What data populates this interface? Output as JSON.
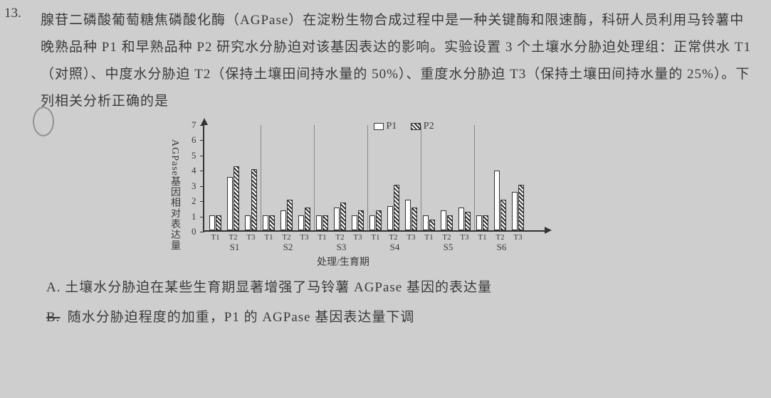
{
  "question_number": "13.",
  "paragraph": "腺苷二磷酸葡萄糖焦磷酸化酶（AGPase）在淀粉生物合成过程中是一种关键酶和限速酶，科研人员利用马铃薯中晚熟品种 P1 和早熟品种 P2 研究水分胁迫对该基因表达的影响。实验设置 3 个土壤水分胁迫处理组：正常供水 T1（对照）、中度水分胁迫 T2（保持土壤田间持水量的 50%）、重度水分胁迫 T3（保持土壤田间持水量的 25%）。下列相关分析正确的是",
  "chart": {
    "y_label": "AGPase基因相对表达量",
    "x_label": "处理/生育期",
    "y_max": 7,
    "y_ticks": [
      0,
      1,
      2,
      3,
      4,
      5,
      6,
      7
    ],
    "legend": {
      "p1": "P1",
      "p2": "P2"
    },
    "treatments": [
      "T1",
      "T2",
      "T3"
    ],
    "stages": [
      "S1",
      "S2",
      "S3",
      "S4",
      "S5",
      "S6"
    ],
    "data_p1": {
      "S1": [
        1.0,
        3.5,
        1.0
      ],
      "S2": [
        1.0,
        1.3,
        1.0
      ],
      "S3": [
        1.0,
        1.5,
        1.0
      ],
      "S4": [
        1.0,
        1.6,
        2.0
      ],
      "S5": [
        1.0,
        1.3,
        1.5
      ],
      "S6": [
        1.0,
        3.9,
        2.5
      ]
    },
    "data_p2": {
      "S1": [
        1.0,
        4.2,
        4.0
      ],
      "S2": [
        1.0,
        2.0,
        1.5
      ],
      "S3": [
        1.0,
        1.8,
        1.3
      ],
      "S4": [
        1.3,
        3.0,
        1.5
      ],
      "S5": [
        0.7,
        1.0,
        1.2
      ],
      "S6": [
        1.0,
        2.0,
        3.0
      ]
    },
    "colors": {
      "axis": "#333",
      "p1_fill": "#ffffff",
      "p2_fill": "hatch",
      "bg": "#cecece"
    }
  },
  "options": {
    "A": "A. 土壤水分胁迫在某些生育期显著增强了马铃薯 AGPase 基因的表达量",
    "B": "B. 随水分胁迫程度的加重，P1 的 AGPase 基因表达量下调"
  }
}
